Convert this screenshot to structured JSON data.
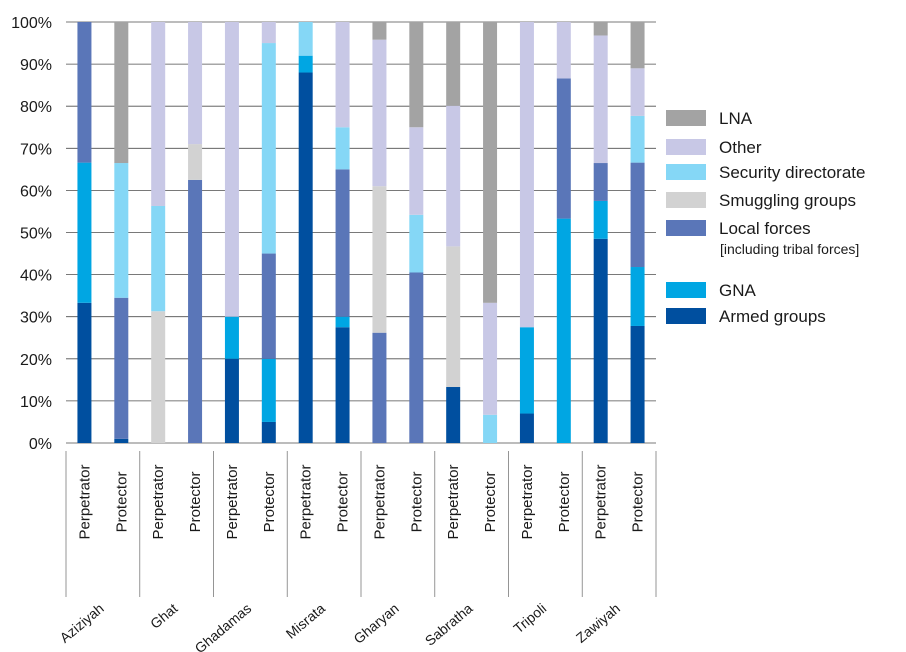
{
  "chart_data": {
    "type": "bar",
    "stacked": true,
    "y_unit": "percent",
    "ylim": [
      0,
      100
    ],
    "y_ticks": [
      "0%",
      "10%",
      "20%",
      "30%",
      "40%",
      "50%",
      "60%",
      "70%",
      "80%",
      "90%",
      "100%"
    ],
    "grid": true,
    "legend_position": "right",
    "groups": [
      "Aziziyah",
      "Ghat",
      "Ghadamas",
      "Misrata",
      "Gharyan",
      "Sabratha",
      "Tripoli",
      "Zawiyah"
    ],
    "categories": [
      "Perpetrator",
      "Protector",
      "Perpetrator",
      "Protector",
      "Perpetrator",
      "Protector",
      "Perpetrator",
      "Protector",
      "Perpetrator",
      "Protector",
      "Perpetrator",
      "Protector",
      "Perpetrator",
      "Protector",
      "Perpetrator",
      "Protector"
    ],
    "series": [
      {
        "name": "Armed groups",
        "color": "#004f9f",
        "values": [
          33.3,
          1,
          0,
          0,
          20,
          5,
          88,
          27.5,
          0,
          0,
          13.3,
          0,
          7,
          0,
          48.5,
          27.8
        ]
      },
      {
        "name": "GNA",
        "color": "#00a6e3",
        "values": [
          33.3,
          0,
          0,
          0,
          10,
          15,
          4,
          2.5,
          0,
          0,
          0,
          0,
          20.5,
          53.3,
          9,
          14
        ]
      },
      {
        "name": "Local forces",
        "legend_note": "[including tribal forces]",
        "color": "#5a76b8",
        "values": [
          33.4,
          33.5,
          0,
          62.5,
          0,
          25,
          0,
          35,
          26.2,
          40.5,
          0,
          0,
          0,
          33.3,
          9,
          24.8
        ]
      },
      {
        "name": "Smuggling groups",
        "color": "#d2d2d2",
        "values": [
          0,
          0,
          31.3,
          8.5,
          0,
          0,
          0,
          0,
          34.8,
          0,
          33.4,
          0,
          0,
          0,
          0,
          0
        ]
      },
      {
        "name": "Security directorate",
        "color": "#85d7f6",
        "values": [
          0,
          32,
          25,
          0,
          0,
          50,
          8,
          10,
          0,
          13.7,
          0,
          6.7,
          0,
          0,
          0,
          11.1
        ]
      },
      {
        "name": "Other",
        "color": "#c8c8e6",
        "values": [
          0,
          0,
          43.7,
          29,
          70,
          5,
          0,
          25,
          34.8,
          20.8,
          33.4,
          26.6,
          72.5,
          13.4,
          30.3,
          11.3
        ]
      },
      {
        "name": "LNA",
        "color": "#a3a3a3",
        "values": [
          0,
          33.5,
          0,
          0,
          0,
          0,
          0,
          0,
          4.2,
          25,
          19.9,
          66.7,
          0,
          0,
          3.2,
          11
        ]
      }
    ]
  }
}
